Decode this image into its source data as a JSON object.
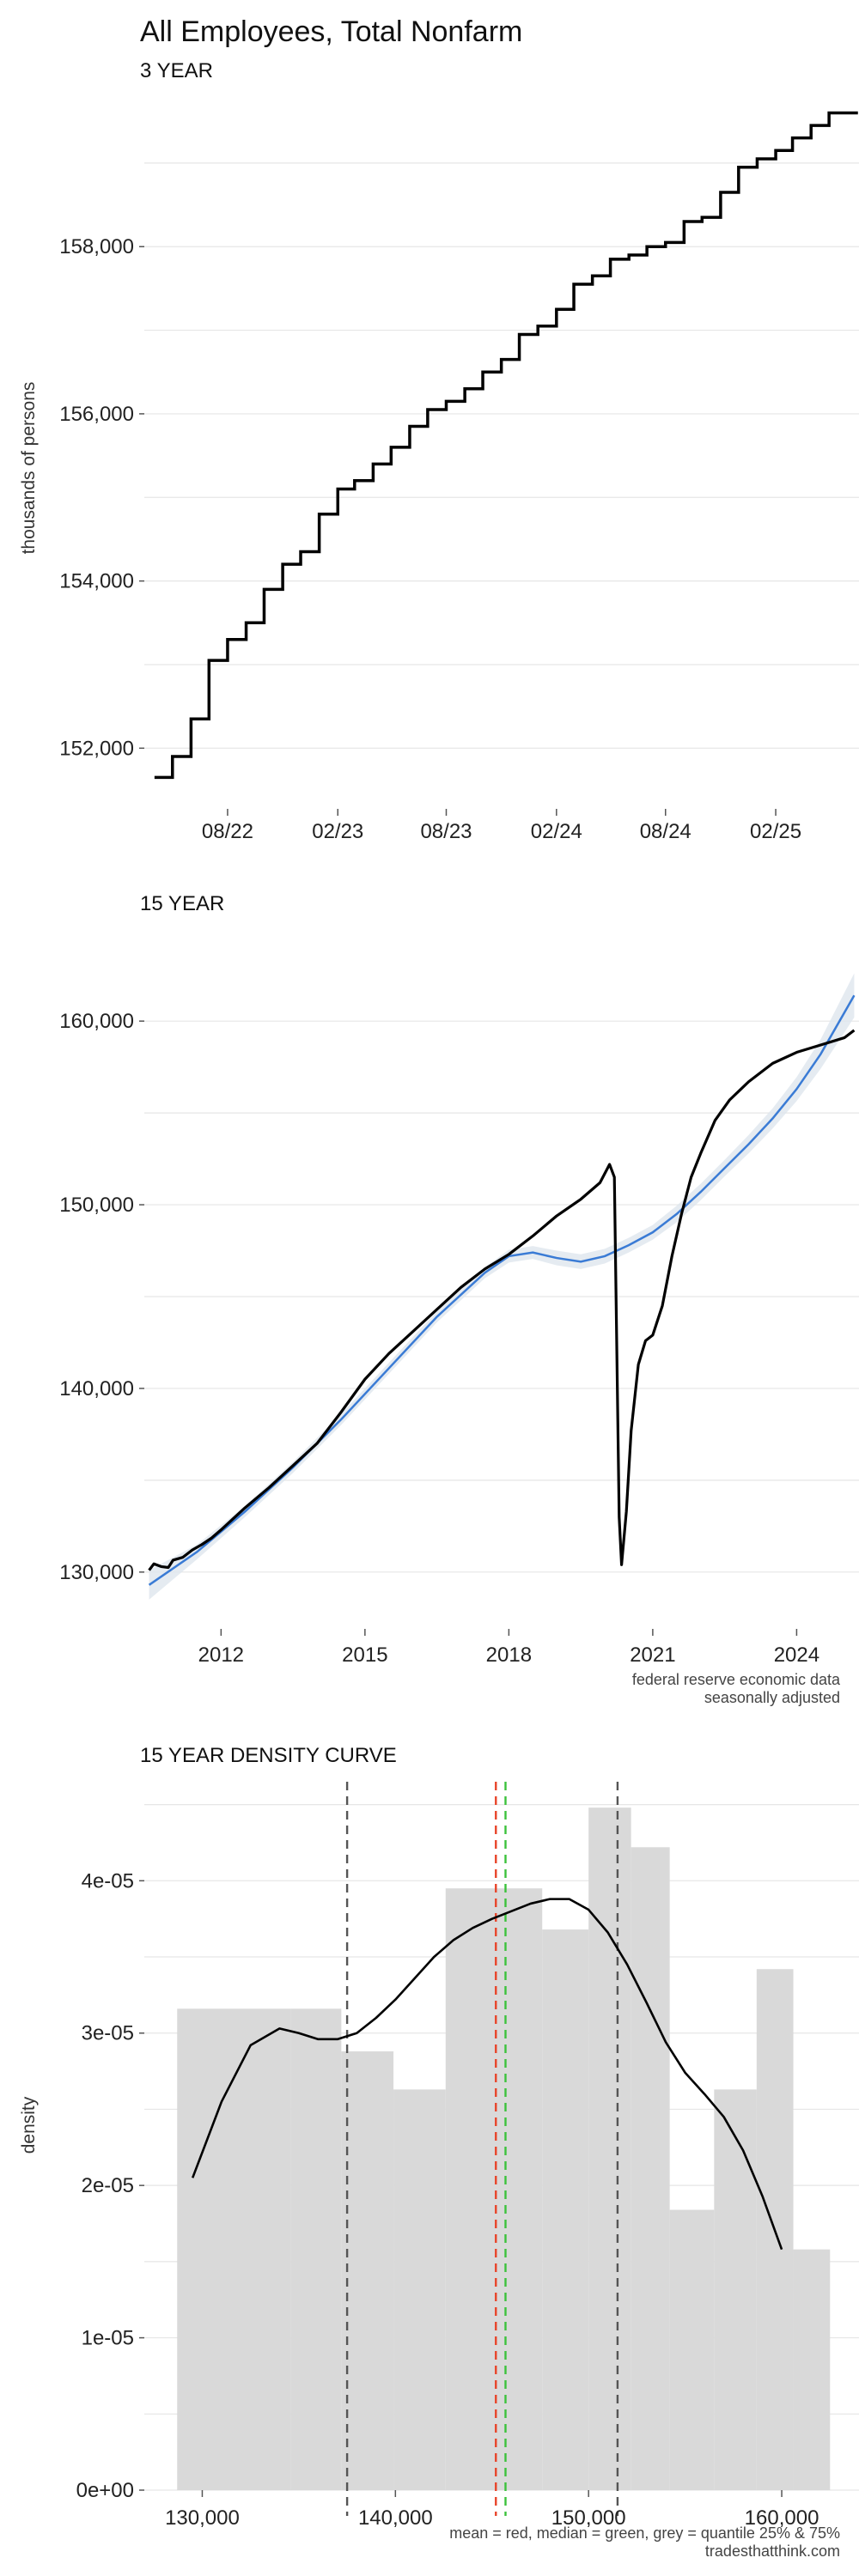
{
  "page": {
    "title": "All Employees, Total Nonfarm",
    "caption_source_1": "federal reserve economic data",
    "caption_source_2": "seasonally adjusted",
    "caption_stats": "mean = red, median = green, grey = quantile 25% & 75%",
    "caption_site": "tradesthatthink.com"
  },
  "colors": {
    "series": "#000000",
    "trend": "#3a7bd5",
    "trend_band": "#dfe6ee",
    "bars": "#d9d9d9",
    "mean": "#e8442a",
    "median": "#3cc23c",
    "quantile": "#555555"
  },
  "chart_data": [
    {
      "type": "line",
      "subtitle": "3 YEAR",
      "ylabel": "thousands of persons",
      "xlabel": "",
      "step": true,
      "ylim": [
        151500,
        159800
      ],
      "yticks": [
        152000,
        154000,
        156000,
        158000
      ],
      "ytick_labels": [
        "152,000",
        "154,000",
        "156,000",
        "158,000"
      ],
      "xlim": [
        "2022-03-15",
        "2025-06-20"
      ],
      "xticks": [
        "2022-08-01",
        "2023-02-01",
        "2023-08-01",
        "2024-02-01",
        "2024-08-01",
        "2025-02-01"
      ],
      "xtick_labels": [
        "08/22",
        "02/23",
        "08/23",
        "02/24",
        "08/24",
        "02/25"
      ],
      "grid": true,
      "x": [
        "2022-04",
        "2022-05",
        "2022-06",
        "2022-07",
        "2022-08",
        "2022-09",
        "2022-10",
        "2022-11",
        "2022-12",
        "2023-01",
        "2023-02",
        "2023-03",
        "2023-04",
        "2023-05",
        "2023-06",
        "2023-07",
        "2023-08",
        "2023-09",
        "2023-10",
        "2023-11",
        "2023-12",
        "2024-01",
        "2024-02",
        "2024-03",
        "2024-04",
        "2024-05",
        "2024-06",
        "2024-07",
        "2024-08",
        "2024-09",
        "2024-10",
        "2024-11",
        "2024-12",
        "2025-01",
        "2025-02",
        "2025-03",
        "2025-04",
        "2025-05",
        "2025-06"
      ],
      "values": [
        151650,
        151900,
        152350,
        153050,
        153300,
        153500,
        153900,
        154200,
        154350,
        154800,
        155100,
        155200,
        155400,
        155600,
        155850,
        156050,
        156150,
        156300,
        156500,
        156650,
        156950,
        157050,
        157250,
        157550,
        157650,
        157850,
        157900,
        158000,
        158050,
        158300,
        158350,
        158650,
        158950,
        159050,
        159150,
        159300,
        159450,
        159600,
        159600
      ]
    },
    {
      "type": "line",
      "subtitle": "15 YEAR",
      "ylabel": "",
      "xlabel": "",
      "ylim": [
        127000,
        163000
      ],
      "yticks": [
        130000,
        140000,
        150000,
        160000
      ],
      "ytick_labels": [
        "130,000",
        "140,000",
        "150,000",
        "160,000"
      ],
      "xlim": [
        2010.4,
        2025.3
      ],
      "xticks": [
        2012,
        2015,
        2018,
        2021,
        2024
      ],
      "xtick_labels": [
        "2012",
        "2015",
        "2018",
        "2021",
        "2024"
      ],
      "grid": true,
      "series": [
        {
          "role": "employment",
          "x": [
            2010.5,
            2010.6,
            2010.75,
            2010.9,
            2011.0,
            2011.2,
            2011.4,
            2011.6,
            2011.8,
            2012.0,
            2012.5,
            2013.0,
            2013.5,
            2014.0,
            2014.5,
            2015.0,
            2015.5,
            2016.0,
            2016.5,
            2017.0,
            2017.5,
            2018.0,
            2018.5,
            2019.0,
            2019.5,
            2019.9,
            2020.1,
            2020.2,
            2020.3,
            2020.35,
            2020.45,
            2020.55,
            2020.7,
            2020.85,
            2021.0,
            2021.2,
            2021.4,
            2021.6,
            2021.8,
            2022.0,
            2022.3,
            2022.6,
            2023.0,
            2023.5,
            2024.0,
            2024.5,
            2025.0,
            2025.2
          ],
          "values": [
            130100,
            130450,
            130300,
            130250,
            130650,
            130800,
            131200,
            131500,
            131850,
            132300,
            133500,
            134600,
            135800,
            137000,
            138700,
            140500,
            141900,
            143100,
            144300,
            145500,
            146500,
            147300,
            148300,
            149400,
            150300,
            151200,
            152200,
            151500,
            133000,
            130400,
            133300,
            137700,
            141300,
            142600,
            142900,
            144500,
            147200,
            149500,
            151500,
            152800,
            154600,
            155700,
            156700,
            157700,
            158300,
            158700,
            159100,
            159500
          ]
        },
        {
          "role": "smoothed-trend",
          "x": [
            2010.5,
            2011.5,
            2012.5,
            2013.5,
            2014.5,
            2015.5,
            2016.5,
            2017.5,
            2018.0,
            2018.5,
            2019.0,
            2019.5,
            2020.0,
            2020.5,
            2021.0,
            2021.5,
            2022.0,
            2022.5,
            2023.0,
            2023.5,
            2024.0,
            2024.5,
            2025.2
          ],
          "values": [
            129300,
            131100,
            133300,
            135700,
            138300,
            141100,
            143900,
            146300,
            147200,
            147400,
            147100,
            146900,
            147200,
            147800,
            148500,
            149500,
            150700,
            152000,
            153300,
            154700,
            156300,
            158200,
            161400
          ],
          "band": [
            800,
            400,
            300,
            300,
            300,
            300,
            300,
            300,
            350,
            350,
            400,
            400,
            400,
            400,
            400,
            450,
            450,
            450,
            500,
            550,
            650,
            800,
            1200
          ]
        }
      ]
    },
    {
      "type": "bar",
      "subtitle": "15 YEAR DENSITY CURVE",
      "ylabel": "density",
      "xlabel": "",
      "xlim": [
        127000,
        164000
      ],
      "ylim": [
        0,
        4.65e-05
      ],
      "xticks": [
        130000,
        140000,
        150000,
        160000
      ],
      "xtick_labels": [
        "130,000",
        "140,000",
        "150,000",
        "160,000"
      ],
      "yticks": [
        0,
        1e-05,
        2e-05,
        3e-05,
        4e-05
      ],
      "ytick_labels": [
        "0e+00",
        "1e-05",
        "2e-05",
        "3e-05",
        "4e-05"
      ],
      "grid": true,
      "bins": [
        {
          "x0": 128700,
          "x1": 134600,
          "density": 3.16e-05
        },
        {
          "x0": 134600,
          "x1": 137200,
          "density": 3.16e-05
        },
        {
          "x0": 137200,
          "x1": 139900,
          "density": 2.88e-05
        },
        {
          "x0": 139900,
          "x1": 142600,
          "density": 2.63e-05
        },
        {
          "x0": 142600,
          "x1": 145100,
          "density": 3.95e-05
        },
        {
          "x0": 145100,
          "x1": 147600,
          "density": 3.95e-05
        },
        {
          "x0": 147600,
          "x1": 150000,
          "density": 3.68e-05
        },
        {
          "x0": 150000,
          "x1": 152200,
          "density": 4.48e-05
        },
        {
          "x0": 152200,
          "x1": 154200,
          "density": 4.22e-05
        },
        {
          "x0": 154200,
          "x1": 156500,
          "density": 1.84e-05
        },
        {
          "x0": 156500,
          "x1": 158700,
          "density": 2.63e-05
        },
        {
          "x0": 158700,
          "x1": 160600,
          "density": 3.42e-05
        },
        {
          "x0": 160600,
          "x1": 162500,
          "density": 1.58e-05
        }
      ],
      "density_curve": {
        "x": [
          129500,
          131000,
          132500,
          134000,
          135000,
          136000,
          137000,
          138000,
          139000,
          140000,
          141000,
          142000,
          143000,
          144000,
          145000,
          146000,
          147000,
          148000,
          149000,
          150000,
          151000,
          152000,
          153000,
          154000,
          155000,
          156000,
          157000,
          158000,
          159000,
          160000
        ],
        "y": [
          2.05e-05,
          2.55e-05,
          2.92e-05,
          3.03e-05,
          3e-05,
          2.96e-05,
          2.96e-05,
          3e-05,
          3.1e-05,
          3.22e-05,
          3.36e-05,
          3.5e-05,
          3.61e-05,
          3.69e-05,
          3.75e-05,
          3.8e-05,
          3.85e-05,
          3.88e-05,
          3.88e-05,
          3.81e-05,
          3.66e-05,
          3.45e-05,
          3.2e-05,
          2.94e-05,
          2.74e-05,
          2.6e-05,
          2.45e-05,
          2.23e-05,
          1.93e-05,
          1.58e-05
        ]
      },
      "markers": {
        "mean": 145200,
        "median": 145700,
        "quantile_25": 137500,
        "quantile_75": 151500
      }
    }
  ]
}
